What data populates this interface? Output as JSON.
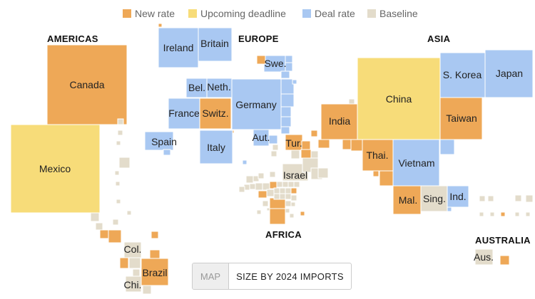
{
  "colors": {
    "new": "#eea857",
    "upcoming": "#f7dc79",
    "deal": "#a9c8f2",
    "baseline": "#e3dccb"
  },
  "legend": {
    "new_rate": "New rate",
    "upcoming_deadline": "Upcoming deadline",
    "deal_rate": "Deal rate",
    "baseline": "Baseline"
  },
  "regions": {
    "americas": "AMERICAS",
    "europe": "EUROPE",
    "asia": "ASIA",
    "africa": "AFRICA",
    "australia": "AUSTRALIA"
  },
  "countries": {
    "canada": "Canada",
    "mexico": "Mexico",
    "brazil": "Brazil",
    "colombia": "Col.",
    "chile": "Chi.",
    "ireland": "Ireland",
    "britain": "Britain",
    "sweden": "Swe.",
    "belgium": "Bel.",
    "netherlands": "Neth.",
    "germany": "Germany",
    "france": "France",
    "switzerland": "Switz.",
    "spain": "Spain",
    "italy": "Italy",
    "austria": "Aut.",
    "turkey": "Tur.",
    "israel": "Israel",
    "china": "China",
    "south_korea": "S. Korea",
    "japan": "Japan",
    "india": "India",
    "taiwan": "Taiwan",
    "thailand": "Thai.",
    "vietnam": "Vietnam",
    "malaysia": "Mal.",
    "singapore": "Sing.",
    "indonesia": "Ind.",
    "australia": "Aus."
  },
  "toggle": {
    "map": "MAP",
    "size": "SIZE BY 2024 IMPORTS"
  }
}
